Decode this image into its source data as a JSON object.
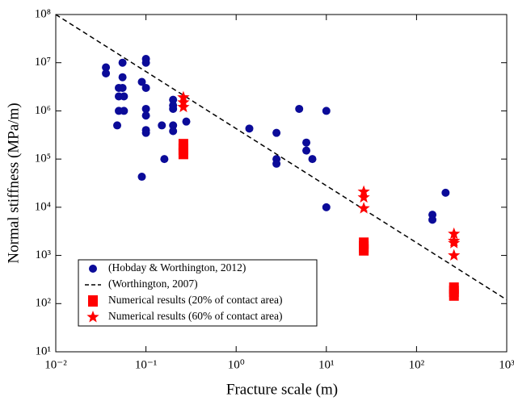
{
  "chart_data": {
    "type": "scatter",
    "xlabel": "Fracture scale (m)",
    "ylabel": "Normal stiffness (MPa/m)",
    "xscale": "log",
    "yscale": "log",
    "xlim": [
      0.01,
      1000
    ],
    "ylim": [
      10,
      100000000
    ],
    "xticks": [
      {
        "value": 0.01,
        "label": "10⁻²"
      },
      {
        "value": 0.1,
        "label": "10⁻¹"
      },
      {
        "value": 1,
        "label": "10⁰"
      },
      {
        "value": 10,
        "label": "10¹"
      },
      {
        "value": 100,
        "label": "10²"
      },
      {
        "value": 1000,
        "label": "10³"
      }
    ],
    "yticks": [
      {
        "value": 10,
        "label": "10¹"
      },
      {
        "value": 100,
        "label": "10²"
      },
      {
        "value": 1000,
        "label": "10³"
      },
      {
        "value": 10000,
        "label": "10⁴"
      },
      {
        "value": 100000,
        "label": "10⁵"
      },
      {
        "value": 1000000,
        "label": "10⁶"
      },
      {
        "value": 10000000,
        "label": "10⁷"
      },
      {
        "value": 100000000,
        "label": "10⁸"
      }
    ],
    "legend": "lower left",
    "series": [
      {
        "name": "(Hobday & Worthington, 2012)",
        "color": "#0b0b99",
        "marker": "circle",
        "x": [
          0.036,
          0.036,
          0.055,
          0.055,
          0.05,
          0.055,
          0.05,
          0.057,
          0.05,
          0.057,
          0.048,
          0.1,
          0.1,
          0.09,
          0.1,
          0.1,
          0.1,
          0.1,
          0.1,
          0.09,
          0.2,
          0.2,
          0.2,
          0.15,
          0.2,
          0.2,
          0.16,
          0.28,
          1.4,
          2.8,
          2.8,
          2.8,
          5,
          6,
          6,
          7,
          10,
          10,
          150,
          150,
          210
        ],
        "values": [
          8000000,
          6000000,
          10000000,
          5000000,
          3000000,
          3000000,
          2000000,
          2000000,
          1000000,
          1000000,
          500000,
          12000000,
          10000000,
          4000000,
          3000000,
          1100000,
          800000,
          400000,
          350000,
          43000,
          1700000,
          1100000,
          1300000,
          500000,
          500000,
          380000,
          100000,
          600000,
          430000,
          350000,
          100000,
          80000,
          1100000,
          220000,
          150000,
          100000,
          1000000,
          10000,
          7000,
          5500,
          20000
        ]
      },
      {
        "name": "(Worthington, 2007)",
        "color": "#000000",
        "marker": "dashed-line",
        "x": [
          0.01,
          1000
        ],
        "values": [
          100000000,
          120
        ]
      },
      {
        "name": "Numerical results (20% of contact area)",
        "color": "#ff0000",
        "marker": "square",
        "x": [
          0.26,
          0.26,
          0.26,
          26,
          26,
          26,
          260,
          260,
          260
        ],
        "values": [
          200000,
          160000,
          130000,
          1800,
          1500,
          1300,
          210,
          180,
          150
        ]
      },
      {
        "name": "Numerical results (60% of contact area)",
        "color": "#ff0000",
        "marker": "star",
        "x": [
          0.26,
          0.26,
          0.26,
          26,
          26,
          26,
          260,
          260,
          260,
          260
        ],
        "values": [
          1900000,
          1500000,
          1200000,
          21000,
          16000,
          9500,
          2800,
          2000,
          1800,
          1000
        ]
      }
    ]
  }
}
